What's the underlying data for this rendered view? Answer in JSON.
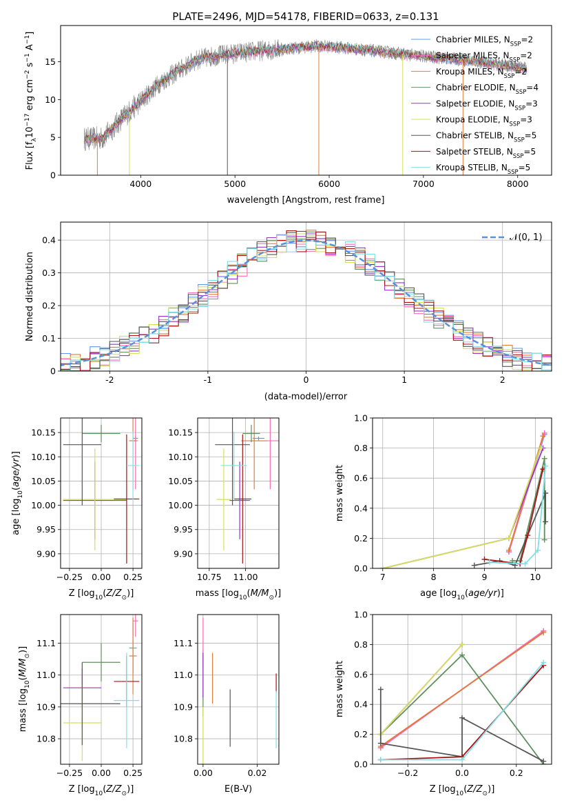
{
  "figure_title": "PLATE=2496, MJD=54178, FIBERID=0633, z=0.131",
  "colors": {
    "c1": "#6495ed",
    "c2": "#ff69b4",
    "c3": "#e07b39",
    "c4": "#5f8f5f",
    "c5": "#9932cc",
    "c6": "#d4e157",
    "c7": "#555555",
    "c8": "#aa1111",
    "c9": "#80dfe6",
    "grid": "#b0b0b0",
    "dashed": "#5b8fd6",
    "spectrum": "#808080"
  },
  "chart_data": [
    {
      "id": "spectrum",
      "type": "line",
      "title": "PLATE=2496, MJD=54178, FIBERID=0633, z=0.131",
      "xlabel": "wavelength [Angstrom, rest frame]",
      "ylabel_main": "Flux [f",
      "ylabel_sub": "λ",
      "ylabel_rest": "10",
      "ylabel_sup1": "−17",
      "ylabel_mid": " erg cm",
      "ylabel_sup2": "−2",
      "ylabel_mid2": " s",
      "ylabel_sup3": "−1",
      "ylabel_end": " A",
      "ylabel_sup4": "−1",
      "ylabel_close": "]",
      "xlim": [
        3150,
        8360
      ],
      "ylim": [
        0,
        19.8
      ],
      "xticks": [
        4000,
        5000,
        6000,
        7000,
        8000
      ],
      "yticks": [
        0,
        5,
        10,
        15
      ],
      "grid": false,
      "legend": "upper-right",
      "continuum_model": {
        "x": [
          3400,
          3600,
          3800,
          4000,
          4200,
          4400,
          4600,
          4800,
          5000,
          5300,
          5600,
          5900,
          6200,
          6500,
          6800,
          7100,
          7400,
          7700,
          8000,
          8100
        ],
        "y": [
          4.8,
          4.9,
          7.5,
          9.8,
          12.2,
          13.8,
          15.3,
          15.8,
          16.1,
          16.5,
          16.8,
          17.1,
          16.8,
          16.4,
          16.0,
          15.6,
          15.3,
          14.8,
          14.3,
          14.1
        ]
      },
      "legend_entries": [
        {
          "name": "Chabrier MILES, N",
          "sub": "SSP",
          "tail": "=2"
        },
        {
          "name": "Salpeter MILES, N",
          "sub": "SSP",
          "tail": "=2"
        },
        {
          "name": "Kroupa MILES, N",
          "sub": "SSP",
          "tail": "=2"
        },
        {
          "name": "Chabrier ELODIE, N",
          "sub": "SSP",
          "tail": "=4"
        },
        {
          "name": "Salpeter ELODIE, N",
          "sub": "SSP",
          "tail": "=3"
        },
        {
          "name": "Kroupa ELODIE, N",
          "sub": "SSP",
          "tail": "=3"
        },
        {
          "name": "Chabrier STELIB, N",
          "sub": "SSP",
          "tail": "=5"
        },
        {
          "name": "Salpeter STELIB, N",
          "sub": "SSP",
          "tail": "=5"
        },
        {
          "name": "Kroupa STELIB, N",
          "sub": "SSP",
          "tail": "=5"
        }
      ]
    },
    {
      "id": "residuals",
      "type": "histogram",
      "xlabel": "(data-model)/error",
      "ylabel": "Normed distribution",
      "xlim": [
        -2.5,
        2.5
      ],
      "ylim": [
        0,
        0.455
      ],
      "xticks": [
        -2,
        -1,
        0,
        1,
        2
      ],
      "yticks": [
        0.0,
        0.1,
        0.2,
        0.3,
        0.4
      ],
      "bin_width": 0.1,
      "grid": true,
      "legend": "upper-right",
      "legend_label": "𝒩(0, 1)"
    },
    {
      "id": "age_vs_z",
      "type": "errorbar",
      "xlabel": "Z [log",
      "xlabel_sub": "10",
      "xlabel_tail": "(Z/Z",
      "xlabel_sub2": "⊙",
      "xlabel_end": ")]",
      "ylabel": "age  [log",
      "ylabel_sub": "10",
      "ylabel_tail": "(age/yr)]",
      "xlim": [
        -0.32,
        0.32
      ],
      "ylim": [
        9.87,
        10.18
      ],
      "xticks": [
        -0.25,
        0.0,
        0.25
      ],
      "xticklabels": [
        "−0.25",
        "0.00",
        "0.25"
      ],
      "yticks": [
        9.9,
        9.95,
        10.0,
        10.05,
        10.1,
        10.15
      ],
      "yticklabels": [
        "9.90",
        "9.95",
        "10.00",
        "10.05",
        "10.10",
        "10.15"
      ],
      "grid": true,
      "points": [
        {
          "x": 0.27,
          "xerr": 0.02,
          "y": 10.138,
          "yerr": 0.004
        },
        {
          "x": 0.27,
          "xerr": 0.02,
          "y": 10.133,
          "yerr": 0.1
        },
        {
          "x": 0.25,
          "xerr": 0.03,
          "y": 10.133,
          "yerr": 0.1
        },
        {
          "x": 0.0,
          "xerr": 0.15,
          "y": 10.148,
          "yerr": 0.018
        },
        {
          "x": -0.05,
          "xerr": 0.25,
          "y": 10.01,
          "yerr": 0.08
        },
        {
          "x": -0.05,
          "xerr": 0.25,
          "y": 10.012,
          "yerr": 0.105
        },
        {
          "x": -0.15,
          "xerr": 0.15,
          "y": 10.125,
          "yerr": 0.125
        },
        {
          "x": 0.2,
          "xerr": 0.1,
          "y": 10.013,
          "yerr": 0.133
        },
        {
          "x": 0.25,
          "xerr": 0.05,
          "y": 10.082,
          "yerr": 0.07
        }
      ]
    },
    {
      "id": "age_vs_mass",
      "type": "errorbar",
      "xlabel": "mass [log",
      "xlabel_sub": "10",
      "xlabel_tail": "(M/M",
      "xlabel_sub2": "⊙",
      "xlabel_end": ")]",
      "ylabel": "",
      "xlim": [
        10.67,
        11.23
      ],
      "ylim": [
        9.87,
        10.18
      ],
      "xticks": [
        10.75,
        11.0
      ],
      "xticklabels": [
        "10.75",
        "11.00"
      ],
      "yticks": [
        9.9,
        9.95,
        10.0,
        10.05,
        10.1,
        10.15
      ],
      "yticklabels": [
        "9.90",
        "9.95",
        "10.00",
        "10.05",
        "10.10",
        "10.15"
      ],
      "grid": true,
      "points": [
        {
          "x": 11.09,
          "xerr": 0.04,
          "y": 10.138,
          "yerr": 0.004
        },
        {
          "x": 11.17,
          "xerr": 0.13,
          "y": 10.133,
          "yerr": 0.1
        },
        {
          "x": 11.06,
          "xerr": 0.09,
          "y": 10.133,
          "yerr": 0.1
        },
        {
          "x": 11.04,
          "xerr": 0.06,
          "y": 10.148,
          "yerr": 0.018
        },
        {
          "x": 10.96,
          "xerr": 0.07,
          "y": 10.01,
          "yerr": 0.08
        },
        {
          "x": 10.85,
          "xerr": 0.05,
          "y": 10.012,
          "yerr": 0.105
        },
        {
          "x": 10.91,
          "xerr": 0.12,
          "y": 10.125,
          "yerr": 0.125
        },
        {
          "x": 10.98,
          "xerr": 0.06,
          "y": 10.013,
          "yerr": 0.133
        },
        {
          "x": 10.92,
          "xerr": 0.09,
          "y": 10.082,
          "yerr": 0.07
        }
      ]
    },
    {
      "id": "mass_weight_vs_age",
      "type": "line",
      "xlabel": "age  [log",
      "xlabel_sub": "10",
      "xlabel_tail": "(age/yr)]",
      "ylabel": "mass weight",
      "xlim": [
        6.8,
        10.32
      ],
      "ylim": [
        0,
        1.0
      ],
      "xticks": [
        7,
        8,
        9,
        10
      ],
      "xticklabels": [
        "7",
        "8",
        "9",
        "10"
      ],
      "yticks": [
        0.0,
        0.2,
        0.4,
        0.6,
        0.8,
        1.0
      ],
      "yticklabels": [
        "0.0",
        "0.2",
        "0.4",
        "0.6",
        "0.8",
        "1.0"
      ],
      "grid": true,
      "series": [
        {
          "x": [
            9.48,
            10.18
          ],
          "y": [
            0.11,
            0.89
          ]
        },
        {
          "x": [
            9.48,
            10.18
          ],
          "y": [
            0.11,
            0.9
          ]
        },
        {
          "x": [
            9.48,
            10.15
          ],
          "y": [
            0.12,
            0.88
          ]
        },
        {
          "x": [
            9.55,
            9.7,
            10.18,
            10.18
          ],
          "y": [
            0.05,
            0.05,
            0.73,
            0.19
          ]
        },
        {
          "x": [
            7.0,
            9.48,
            10.15
          ],
          "y": [
            0.0,
            0.2,
            0.8
          ]
        },
        {
          "x": [
            7.0,
            9.48,
            10.1
          ],
          "y": [
            0.0,
            0.2,
            0.8
          ]
        },
        {
          "x": [
            8.8,
            9.3,
            9.6,
            10.2,
            10.2
          ],
          "y": [
            0.02,
            0.05,
            0.02,
            0.5,
            0.31
          ]
        },
        {
          "x": [
            9.0,
            9.7,
            9.85,
            10.15
          ],
          "y": [
            0.06,
            0.03,
            0.22,
            0.66
          ]
        },
        {
          "x": [
            9.1,
            9.8,
            10.05,
            10.2
          ],
          "y": [
            0.04,
            0.03,
            0.12,
            0.68
          ]
        }
      ]
    },
    {
      "id": "mass_vs_z",
      "type": "errorbar",
      "xlabel": "Z [log",
      "xlabel_sub": "10",
      "xlabel_tail": "(Z/Z",
      "xlabel_sub2": "⊙",
      "xlabel_end": ")]",
      "ylabel": "mass [log",
      "ylabel_sub": "10",
      "ylabel_tail": "(M/M",
      "ylabel_sub2": "⊙",
      "ylabel_end": ")]",
      "xlim": [
        -0.32,
        0.32
      ],
      "ylim": [
        10.72,
        11.19
      ],
      "xticks": [
        -0.25,
        0.0,
        0.25
      ],
      "xticklabels": [
        "−0.25",
        "0.00",
        "0.25"
      ],
      "yticks": [
        10.8,
        10.9,
        11.0,
        11.1
      ],
      "yticklabels": [
        "10.8",
        "10.9",
        "11.0",
        "11.1"
      ],
      "grid": true,
      "points": [
        {
          "x": 0.25,
          "xerr": 0.03,
          "y": 11.085,
          "yerr": 0.08
        },
        {
          "x": 0.27,
          "xerr": 0.02,
          "y": 11.17,
          "yerr": 0.05
        },
        {
          "x": 0.25,
          "xerr": 0.03,
          "y": 11.06,
          "yerr": 0.12
        },
        {
          "x": 0.0,
          "xerr": 0.15,
          "y": 11.04,
          "yerr": 0.06
        },
        {
          "x": -0.15,
          "xerr": 0.15,
          "y": 10.96,
          "yerr": 0.06
        },
        {
          "x": -0.15,
          "xerr": 0.15,
          "y": 10.85,
          "yerr": 0.12
        },
        {
          "x": -0.15,
          "xerr": 0.3,
          "y": 10.91,
          "yerr": 0.13
        },
        {
          "x": 0.2,
          "xerr": 0.1,
          "y": 10.98,
          "yerr": 0.08
        },
        {
          "x": 0.2,
          "xerr": 0.1,
          "y": 10.92,
          "yerr": 0.15
        }
      ]
    },
    {
      "id": "mass_vs_ebv",
      "type": "errorbar",
      "xlabel": "E(B-V)",
      "ylabel": "",
      "xlim": [
        -0.002,
        0.028
      ],
      "ylim": [
        10.72,
        11.19
      ],
      "xticks": [
        0.0,
        0.02
      ],
      "xticklabels": [
        "0.00",
        "0.02"
      ],
      "yticks": [
        10.8,
        10.9,
        11.0,
        11.1
      ],
      "yticklabels": [
        "10.8",
        "10.9",
        "11.0",
        "11.1"
      ],
      "grid": true,
      "points": [
        {
          "x": 0.0,
          "xerr": 0.0,
          "y": 11.0,
          "yerr": 0.08
        },
        {
          "x": 0.0,
          "xerr": 0.0,
          "y": 11.1,
          "yerr": 0.08
        },
        {
          "x": 0.0035,
          "xerr": 0.0,
          "y": 10.99,
          "yerr": 0.08
        },
        {
          "x": 0.0,
          "xerr": 0.0,
          "y": 10.97,
          "yerr": 0.1
        },
        {
          "x": 0.0,
          "xerr": 0.0,
          "y": 11.0,
          "yerr": 0.07
        },
        {
          "x": 0.0,
          "xerr": 0.0,
          "y": 10.8,
          "yerr": 0.1
        },
        {
          "x": 0.01,
          "xerr": 0.0,
          "y": 10.865,
          "yerr": 0.09
        },
        {
          "x": 0.027,
          "xerr": 0.0,
          "y": 10.975,
          "yerr": 0.03
        },
        {
          "x": 0.027,
          "xerr": 0.0,
          "y": 10.86,
          "yerr": 0.09
        }
      ]
    },
    {
      "id": "mass_weight_vs_z",
      "type": "line",
      "xlabel": "Z [log",
      "xlabel_sub": "10",
      "xlabel_tail": "(Z/Z",
      "xlabel_sub2": "⊙",
      "xlabel_end": ")]",
      "ylabel": "mass weight",
      "xlim": [
        -0.33,
        0.33
      ],
      "ylim": [
        0,
        1.0
      ],
      "xticks": [
        -0.2,
        0.0,
        0.2
      ],
      "xticklabels": [
        "−0.2",
        "0.0",
        "0.2"
      ],
      "yticks": [
        0.0,
        0.2,
        0.4,
        0.6,
        0.8,
        1.0
      ],
      "yticklabels": [
        "0.0",
        "0.2",
        "0.4",
        "0.6",
        "0.8",
        "1.0"
      ],
      "grid": true,
      "series": [
        {
          "x": [
            -0.3,
            0.3
          ],
          "y": [
            0.11,
            0.89
          ]
        },
        {
          "x": [
            -0.3,
            0.3
          ],
          "y": [
            0.11,
            0.89
          ]
        },
        {
          "x": [
            -0.3,
            0.3
          ],
          "y": [
            0.12,
            0.88
          ]
        },
        {
          "x": [
            -0.3,
            0.0,
            0.3
          ],
          "y": [
            0.2,
            0.73,
            0.0
          ]
        },
        {
          "x": [
            -0.3,
            0.0
          ],
          "y": [
            0.2,
            0.8
          ]
        },
        {
          "x": [
            -0.3,
            0.0
          ],
          "y": [
            0.2,
            0.8
          ]
        },
        {
          "x": [
            -0.3,
            -0.3,
            0.0,
            0.0,
            0.3
          ],
          "y": [
            0.5,
            0.14,
            0.05,
            0.31,
            0.02
          ]
        },
        {
          "x": [
            -0.3,
            0.0,
            0.3
          ],
          "y": [
            0.03,
            0.05,
            0.66
          ]
        },
        {
          "x": [
            -0.3,
            0.0,
            0.3
          ],
          "y": [
            0.03,
            0.03,
            0.68
          ]
        }
      ]
    }
  ]
}
